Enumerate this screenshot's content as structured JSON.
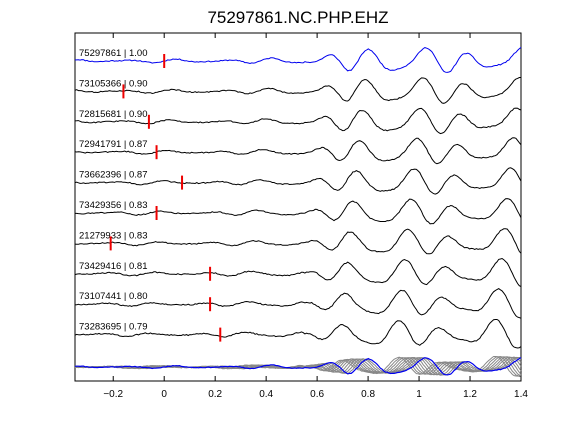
{
  "chart_data": {
    "type": "line",
    "title": "75297861.NC.PHP.EHZ",
    "xlabel": "",
    "ylabel": "",
    "xlim": [
      -0.35,
      1.4
    ],
    "x_ticks": [
      -0.2,
      0,
      0.2,
      0.4,
      0.6,
      0.8,
      1,
      1.2,
      1.4
    ],
    "x_tick_labels": [
      "−0.2",
      "0",
      "0.2",
      "0.4",
      "0.6",
      "0.8",
      "1",
      "1.2",
      "1.4"
    ],
    "grid": false,
    "colors": {
      "reference": "#0000ee",
      "trace": "#000000",
      "pick": "#ee0000",
      "stack": "#888888"
    },
    "series": [
      {
        "name": "75297861 | 1.00",
        "pick": 0.0,
        "reference": true
      },
      {
        "name": "73105366 | 0.90",
        "pick": -0.16
      },
      {
        "name": "72815681 | 0.90",
        "pick": -0.06
      },
      {
        "name": "72941791 | 0.87",
        "pick": -0.03
      },
      {
        "name": "73662396 | 0.87",
        "pick": 0.07
      },
      {
        "name": "73429356 | 0.83",
        "pick": -0.03
      },
      {
        "name": "21279933 | 0.83",
        "pick": -0.21
      },
      {
        "name": "73429416 | 0.81",
        "pick": 0.18
      },
      {
        "name": "73107441 | 0.80",
        "pick": 0.18
      },
      {
        "name": "73283695 | 0.79",
        "pick": 0.22
      }
    ]
  }
}
